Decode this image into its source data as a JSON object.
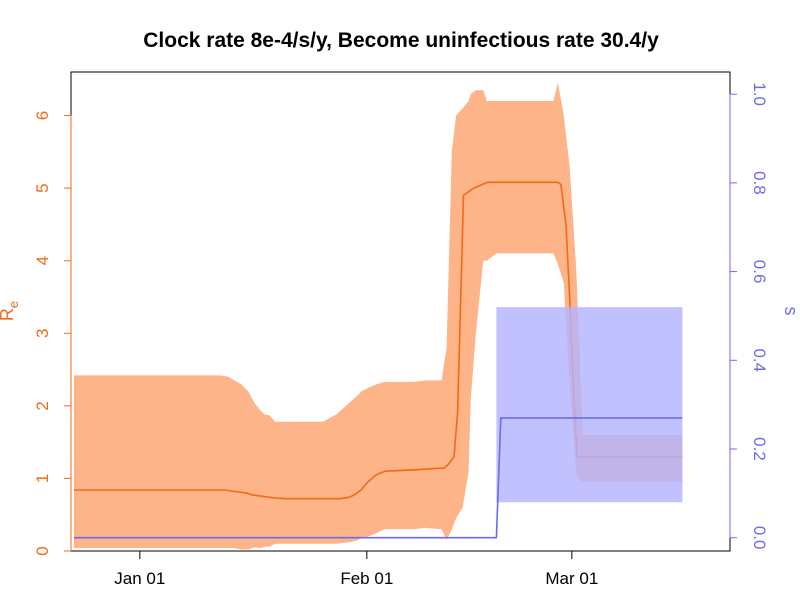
{
  "chart_data": {
    "type": "area",
    "title": "Clock rate 8e-4/s/y, Become uninfectious rate 30.4/y",
    "xlabel": "",
    "x_tick_labels": [
      "Jan 01",
      "Feb 01",
      "Mar 01"
    ],
    "x_tick_days": [
      0,
      31,
      59
    ],
    "xlim_days": [
      -9.4,
      80.6
    ],
    "ylabel_left": "R",
    "ylabel_left_sub": "e",
    "ylabel_right": "s",
    "ylim_left": [
      0,
      6.6
    ],
    "ylim_right": [
      -0.03,
      1.05
    ],
    "yticks_left": [
      0,
      1,
      2,
      3,
      4,
      5,
      6
    ],
    "yticks_right": [
      0.0,
      0.2,
      0.4,
      0.6,
      0.8,
      1.0
    ],
    "yticks_right_labels": [
      "0.0",
      "0.2",
      "0.4",
      "0.6",
      "0.8",
      "1.0"
    ],
    "grid": false,
    "colors": {
      "re_band": "#fdb488",
      "re_line": "#f26a17",
      "s_band": "#b3b3ff",
      "s_line": "#6b6bf0",
      "left_axis": "#f26a17",
      "right_axis": "#6b6bf0"
    },
    "series": [
      {
        "axis": "left",
        "style": "band",
        "x": [
          -9,
          2.7,
          5.6,
          8.3,
          10.2,
          10.9,
          12.1,
          12.9,
          13.8,
          14.8,
          15.6,
          16.5,
          17.1,
          17.7,
          18.5,
          19.5,
          20,
          25,
          26.8,
          28.7,
          29.8,
          30.3,
          31.2,
          32.4,
          33.4,
          34.4,
          37.5,
          38.9,
          41.2,
          41.9,
          42.6,
          43.2,
          44.1,
          44.9,
          45.2,
          45.9,
          46.9,
          47.4,
          48.7,
          49.7,
          51.5,
          52.9,
          54.2,
          55.1,
          55.9,
          56.5,
          57.1,
          57.9,
          58.7,
          59.6,
          60.5,
          62.2,
          65,
          74.1
        ],
        "upper": [
          2.42,
          2.42,
          2.42,
          2.42,
          2.42,
          2.42,
          2.4,
          2.35,
          2.3,
          2.2,
          2.05,
          1.93,
          1.88,
          1.87,
          1.78,
          1.78,
          1.78,
          1.78,
          1.88,
          2.05,
          2.15,
          2.2,
          2.25,
          2.3,
          2.33,
          2.33,
          2.33,
          2.35,
          2.35,
          2.8,
          5.5,
          6.0,
          6.1,
          6.2,
          6.3,
          6.35,
          6.35,
          6.2,
          6.2,
          6.2,
          6.2,
          6.2,
          6.2,
          6.2,
          6.2,
          6.2,
          6.45,
          6.0,
          5.3,
          3.9,
          1.6,
          1.6,
          1.6,
          1.6
        ],
        "lower": [
          0.04,
          0.04,
          0.04,
          0.04,
          0.04,
          0.04,
          0.04,
          0.04,
          0.02,
          0.02,
          0.05,
          0.04,
          0.06,
          0.06,
          0.1,
          0.1,
          0.1,
          0.1,
          0.1,
          0.12,
          0.15,
          0.18,
          0.2,
          0.25,
          0.3,
          0.3,
          0.3,
          0.32,
          0.3,
          0.15,
          0.3,
          0.45,
          0.6,
          1.1,
          2.1,
          3.0,
          4.0,
          4.0,
          4.1,
          4.1,
          4.1,
          4.1,
          4.1,
          4.1,
          4.1,
          4.1,
          3.95,
          3.7,
          2.3,
          1.05,
          0.95,
          0.95,
          0.95,
          0.95
        ]
      },
      {
        "axis": "left",
        "style": "line",
        "x": [
          -9,
          8.7,
          10,
          11.6,
          13,
          14.5,
          15.5,
          17,
          18.5,
          20,
          24.3,
          26.1,
          27.3,
          28.6,
          29.4,
          30.2,
          31.1,
          32.3,
          33.5,
          37.9,
          40.7,
          41.5,
          42.2,
          42.9,
          43.4,
          44.2,
          45.6,
          47.5,
          48.7,
          55.1,
          56.3,
          56.7,
          57.1,
          57.5,
          58.2,
          58.7,
          59.2,
          59.7,
          60.5,
          65,
          74.1
        ],
        "values": [
          0.84,
          0.84,
          0.84,
          0.84,
          0.82,
          0.8,
          0.77,
          0.75,
          0.73,
          0.72,
          0.72,
          0.72,
          0.72,
          0.74,
          0.78,
          0.84,
          0.95,
          1.05,
          1.1,
          1.12,
          1.14,
          1.14,
          1.2,
          1.3,
          1.9,
          4.9,
          5.0,
          5.08,
          5.08,
          5.08,
          5.08,
          5.08,
          5.08,
          5.05,
          4.5,
          3.5,
          2.3,
          1.3,
          1.3,
          1.3,
          1.3
        ]
      },
      {
        "axis": "right",
        "style": "band",
        "x": [
          48.7,
          49.3,
          74.1
        ],
        "upper": [
          0.52,
          0.52,
          0.52
        ],
        "lower": [
          0.08,
          0.08,
          0.08
        ]
      },
      {
        "axis": "right",
        "style": "line",
        "x": [
          -9,
          48.7,
          49.3,
          74.1
        ],
        "values": [
          0.0,
          0.0,
          0.27,
          0.27
        ]
      }
    ]
  }
}
